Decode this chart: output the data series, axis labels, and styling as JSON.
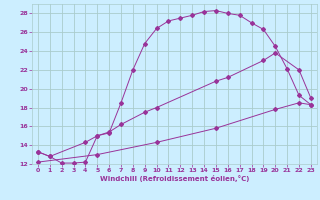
{
  "xlabel": "Windchill (Refroidissement éolien,°C)",
  "background_color": "#cceeff",
  "grid_color": "#aacccc",
  "line_color": "#993399",
  "xlim": [
    -0.5,
    23.5
  ],
  "ylim": [
    12,
    29
  ],
  "xticks": [
    0,
    1,
    2,
    3,
    4,
    5,
    6,
    7,
    8,
    9,
    10,
    11,
    12,
    13,
    14,
    15,
    16,
    17,
    18,
    19,
    20,
    21,
    22,
    23
  ],
  "yticks": [
    12,
    14,
    16,
    18,
    20,
    22,
    24,
    26,
    28
  ],
  "curve1_x": [
    0,
    1,
    2,
    3,
    4,
    5,
    6,
    7,
    8,
    9,
    10,
    11,
    12,
    13,
    14,
    15,
    16,
    17,
    18,
    19,
    20,
    21,
    22,
    23
  ],
  "curve1_y": [
    13.3,
    12.8,
    12.1,
    12.1,
    12.2,
    15.0,
    15.3,
    18.5,
    22.0,
    24.8,
    26.4,
    27.2,
    27.5,
    27.8,
    28.2,
    28.3,
    28.0,
    27.8,
    27.0,
    26.3,
    24.5,
    22.1,
    19.3,
    18.3
  ],
  "curve2_x": [
    0,
    1,
    4,
    5,
    6,
    7,
    9,
    10,
    15,
    16,
    19,
    20,
    22,
    23
  ],
  "curve2_y": [
    13.3,
    12.8,
    14.3,
    15.0,
    15.4,
    16.2,
    17.5,
    18.0,
    20.8,
    21.2,
    23.0,
    23.8,
    22.0,
    19.0
  ],
  "curve3_x": [
    0,
    5,
    10,
    15,
    20,
    22,
    23
  ],
  "curve3_y": [
    12.2,
    13.0,
    14.3,
    15.8,
    17.8,
    18.5,
    18.3
  ]
}
